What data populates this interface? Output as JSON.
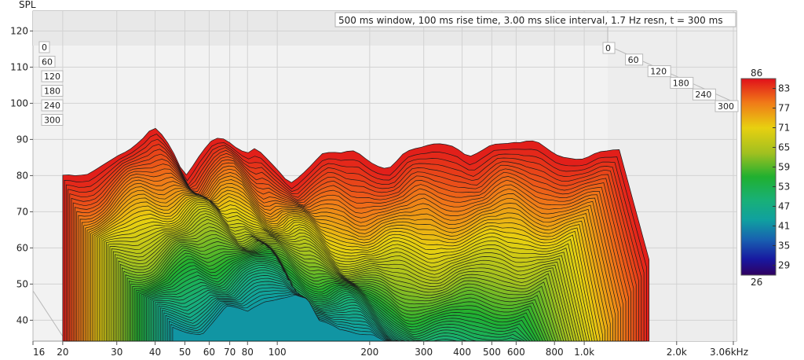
{
  "chart_data": {
    "type": "waterfall",
    "title": "500 ms window, 100 ms rise time, 3.00 ms slice interval, 1.7 Hz resn, t = 300 ms",
    "ylabel": "SPL",
    "ylim": [
      34,
      122
    ],
    "y_ticks": [
      "120",
      "110",
      "100",
      "90",
      "80",
      "70",
      "60",
      "50",
      "40"
    ],
    "x_scale": "log",
    "xlim": [
      16,
      3060
    ],
    "x_ticks": [
      {
        "v": 16,
        "label": "16"
      },
      {
        "v": 20,
        "label": "20"
      },
      {
        "v": 30,
        "label": "30"
      },
      {
        "v": 40,
        "label": "40"
      },
      {
        "v": 50,
        "label": "50"
      },
      {
        "v": 60,
        "label": "60"
      },
      {
        "v": 70,
        "label": "70"
      },
      {
        "v": 80,
        "label": "80"
      },
      {
        "v": 100,
        "label": "100"
      },
      {
        "v": 200,
        "label": "200"
      },
      {
        "v": 300,
        "label": "300"
      },
      {
        "v": 400,
        "label": "400"
      },
      {
        "v": 500,
        "label": "500"
      },
      {
        "v": 600,
        "label": "600"
      },
      {
        "v": 800,
        "label": "800"
      },
      {
        "v": 1000,
        "label": "1.0k"
      },
      {
        "v": 2000,
        "label": "2.0k"
      },
      {
        "v": 3060,
        "label": "3.06kHz"
      }
    ],
    "time_axis_ms": [
      "0",
      "60",
      "120",
      "180",
      "240",
      "300"
    ],
    "colorbar": {
      "max_label": "86",
      "min_label": "26",
      "ticks": [
        "83",
        "77",
        "71",
        "65",
        "59",
        "53",
        "47",
        "41",
        "35",
        "29"
      ],
      "range": [
        26,
        86
      ]
    },
    "series": [
      {
        "time_ms": 0,
        "x": [
          20,
          22,
          24,
          26,
          28,
          30,
          33,
          36,
          38,
          40,
          43,
          46,
          50,
          55,
          60,
          65,
          70,
          75,
          80,
          85,
          90,
          100,
          110,
          120,
          140,
          160,
          180,
          200,
          230,
          260,
          300,
          340,
          380,
          420,
          460,
          500,
          560,
          620,
          700,
          800,
          900,
          1000,
          1100,
          1200,
          1300
        ],
        "values": [
          78,
          79,
          81,
          84,
          86,
          87,
          87,
          88,
          90,
          91,
          89,
          86,
          81,
          87,
          91,
          91,
          88,
          85,
          84,
          86,
          85,
          83,
          80,
          82,
          85,
          84,
          86,
          85,
          84,
          87,
          86,
          87,
          88,
          87,
          89,
          90,
          88,
          87,
          88,
          87,
          87,
          86,
          86,
          85,
          85
        ]
      },
      {
        "time_ms": 300,
        "x": [
          20,
          25,
          30,
          35,
          40,
          45,
          50,
          55,
          60,
          70,
          80,
          90,
          100,
          120,
          150,
          200
        ],
        "values": [
          48,
          47,
          53,
          51,
          55,
          57,
          58,
          56,
          49,
          46,
          46,
          47,
          45,
          40,
          34,
          34
        ]
      }
    ]
  }
}
